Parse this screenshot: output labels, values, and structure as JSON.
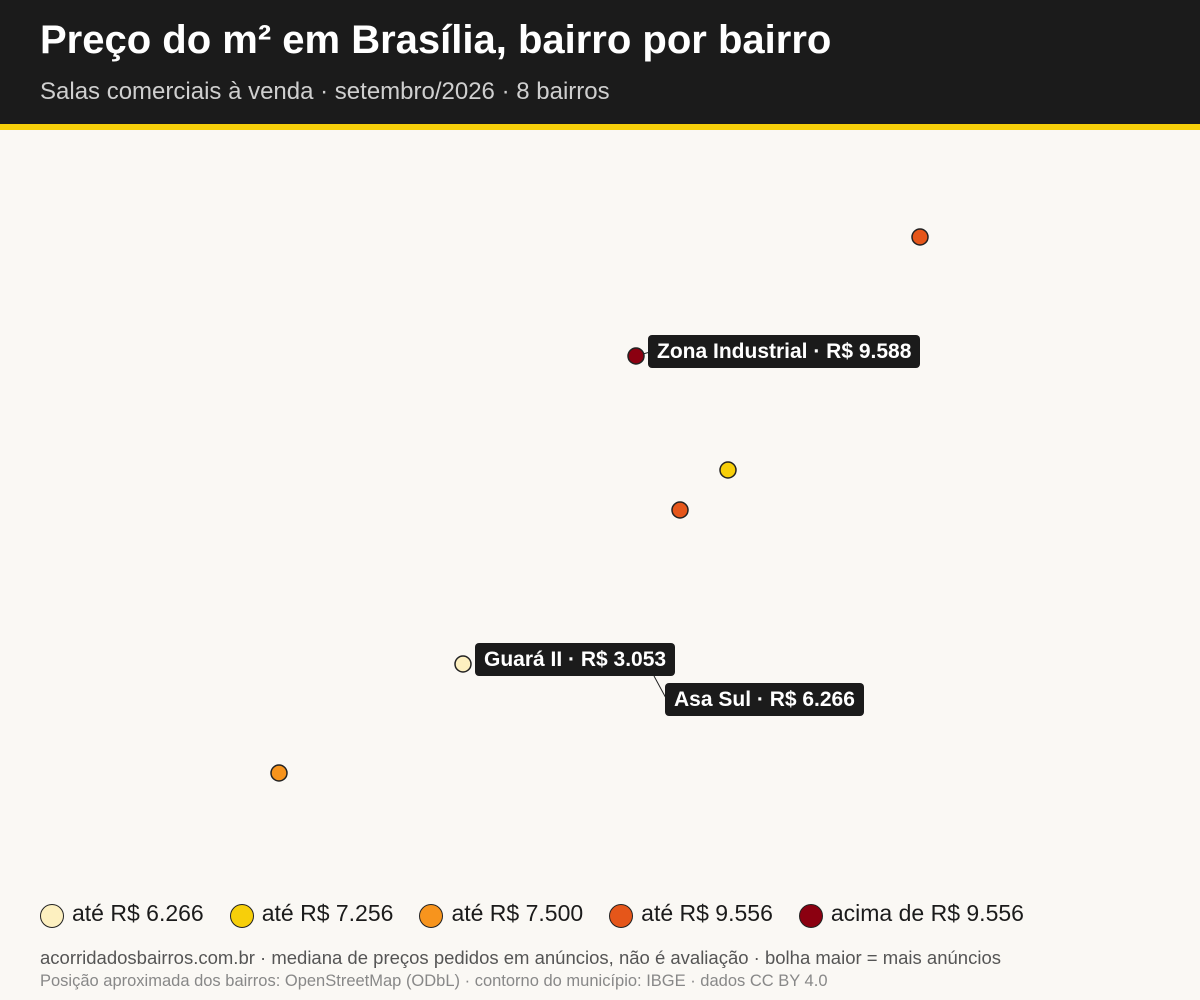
{
  "header": {
    "title": "Preço do m² em Brasília, bairro por bairro",
    "subtitle": "Salas comerciais à venda · setembro/2026 · 8 bairros"
  },
  "map": {
    "labels": [
      "Zona Industrial · R$ 9.588",
      "Guará II · R$ 3.053",
      "Asa Sul · R$ 6.266"
    ]
  },
  "legend": {
    "items": [
      {
        "label": "até R$ 6.266",
        "color": "#fdf0c0"
      },
      {
        "label": "até R$ 7.256",
        "color": "#f7cf0a"
      },
      {
        "label": "até R$ 7.500",
        "color": "#f7941d"
      },
      {
        "label": "até R$ 9.556",
        "color": "#e5561a"
      },
      {
        "label": "acima de R$ 9.556",
        "color": "#8b0010"
      }
    ]
  },
  "footer": {
    "note": "acorridadosbairros.com.br · mediana de preços pedidos em anúncios, não é avaliação · bolha maior = mais anúncios",
    "source": "Posição aproximada dos bairros: OpenStreetMap (ODbL) · contorno do município: IBGE · dados CC BY 4.0"
  }
}
